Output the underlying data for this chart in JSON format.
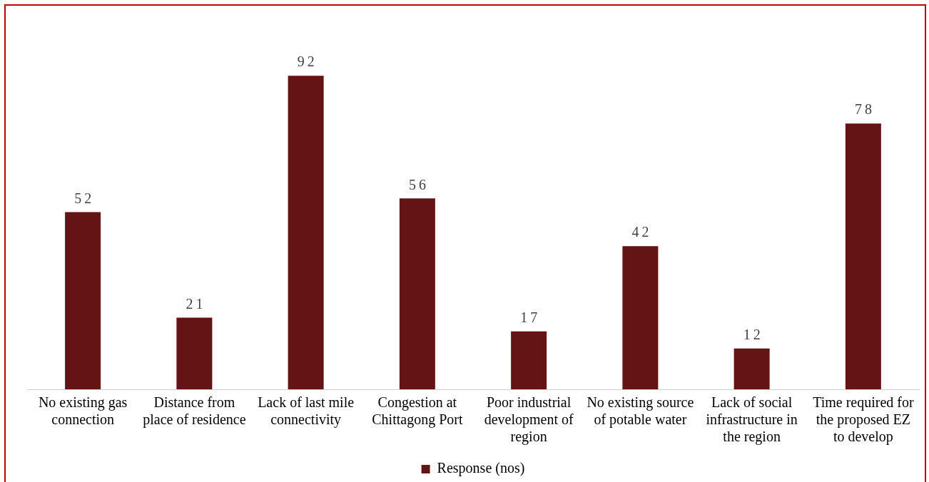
{
  "chart_data": {
    "type": "bar",
    "categories": [
      "No existing gas connection",
      "Distance from place of residence",
      "Lack of last mile connectivity",
      "Congestion at Chittagong Port",
      "Poor industrial development of region",
      "No existing source of potable water",
      "Lack of social infrastructure in the region",
      "Time required for the proposed EZ to develop"
    ],
    "series": [
      {
        "name": "Response (nos)",
        "color": "#641414",
        "values": [
          52,
          21,
          92,
          56,
          17,
          42,
          12,
          78
        ]
      }
    ],
    "data_labels": true,
    "legend": "bottom",
    "grid": false
  }
}
